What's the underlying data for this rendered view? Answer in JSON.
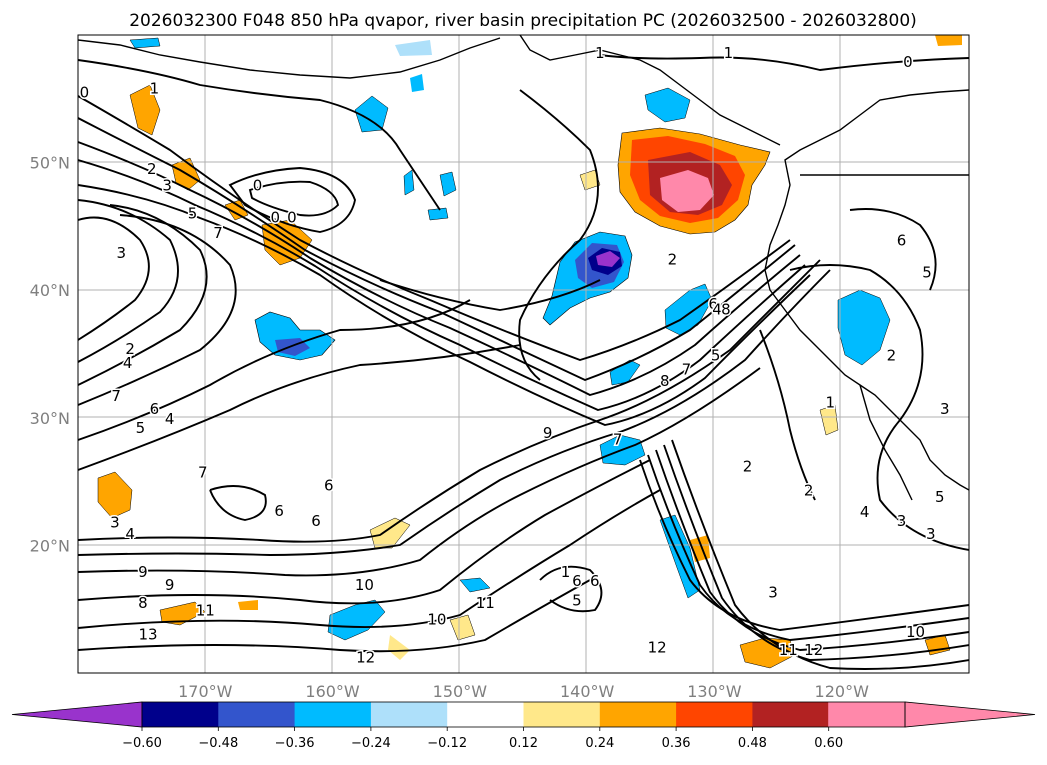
{
  "chart_data": {
    "type": "contour-map",
    "title": "2026032300 F048 850 hPa qvapor, river basin precipitation PC (2026032500 - 2026032800)",
    "projection": "lat-lon",
    "lon_range": [
      -180,
      -110
    ],
    "lat_range": [
      10,
      60
    ],
    "x_ticks": [
      {
        "lon": -170,
        "label": "170°W"
      },
      {
        "lon": -160,
        "label": "160°W"
      },
      {
        "lon": -150,
        "label": "150°W"
      },
      {
        "lon": -140,
        "label": "140°W"
      },
      {
        "lon": -130,
        "label": "130°W"
      },
      {
        "lon": -120,
        "label": "120°W"
      }
    ],
    "y_ticks": [
      {
        "lat": 50,
        "label": "50°N"
      },
      {
        "lat": 40,
        "label": "40°N"
      },
      {
        "lat": 30,
        "label": "30°N"
      },
      {
        "lat": 20,
        "label": "20°N"
      }
    ],
    "colorbar": {
      "levels": [
        -0.6,
        -0.48,
        -0.36,
        -0.24,
        -0.12,
        0.12,
        0.24,
        0.36,
        0.48,
        0.6
      ],
      "level_labels": [
        "−0.60",
        "−0.48",
        "−0.36",
        "−0.24",
        "−0.12",
        "0.12",
        "0.24",
        "0.36",
        "0.48",
        "0.60"
      ],
      "colors": [
        "#9933cc",
        "#00008b",
        "#3355cc",
        "#00bbff",
        "#aee0fa",
        "#ffffff",
        "#ffe88a",
        "#ffa500",
        "#ff4500",
        "#b22222",
        "#ff88aa"
      ],
      "extend": "both"
    },
    "contour_field": "850 hPa qvapor (g/kg)",
    "contour_labels": [
      {
        "lon": -179.5,
        "lat": 55.5,
        "text": "0"
      },
      {
        "lon": -174,
        "lat": 55.8,
        "text": "1"
      },
      {
        "lon": -174.2,
        "lat": 49.5,
        "text": "2"
      },
      {
        "lon": -173,
        "lat": 48.2,
        "text": "3"
      },
      {
        "lon": -171,
        "lat": 46,
        "text": "5"
      },
      {
        "lon": -169,
        "lat": 44.5,
        "text": "7"
      },
      {
        "lon": -165.9,
        "lat": 48.2,
        "text": "0"
      },
      {
        "lon": -164.5,
        "lat": 45.7,
        "text": "0"
      },
      {
        "lon": -163.2,
        "lat": 45.7,
        "text": "0"
      },
      {
        "lon": -176.6,
        "lat": 42.9,
        "text": "3"
      },
      {
        "lon": -175.9,
        "lat": 35.4,
        "text": "2"
      },
      {
        "lon": -176.1,
        "lat": 34.3,
        "text": "4"
      },
      {
        "lon": -177,
        "lat": 31.7,
        "text": "7"
      },
      {
        "lon": -174,
        "lat": 30.7,
        "text": "6"
      },
      {
        "lon": -175.1,
        "lat": 29.2,
        "text": "5"
      },
      {
        "lon": -172.8,
        "lat": 29.9,
        "text": "4"
      },
      {
        "lon": -170.2,
        "lat": 25.7,
        "text": "7"
      },
      {
        "lon": -160.3,
        "lat": 24.7,
        "text": "6"
      },
      {
        "lon": -164.2,
        "lat": 22.7,
        "text": "6"
      },
      {
        "lon": -161.3,
        "lat": 21.9,
        "text": "6"
      },
      {
        "lon": -177.1,
        "lat": 21.8,
        "text": "3"
      },
      {
        "lon": -175.9,
        "lat": 20.9,
        "text": "4"
      },
      {
        "lon": -174.9,
        "lat": 17.9,
        "text": "9"
      },
      {
        "lon": -172.8,
        "lat": 16.9,
        "text": "9"
      },
      {
        "lon": -174.9,
        "lat": 15.5,
        "text": "8"
      },
      {
        "lon": -170,
        "lat": 14.9,
        "text": "11"
      },
      {
        "lon": -174.5,
        "lat": 13,
        "text": "13"
      },
      {
        "lon": -157.5,
        "lat": 16.9,
        "text": "10"
      },
      {
        "lon": -151.8,
        "lat": 14.2,
        "text": "10"
      },
      {
        "lon": -148,
        "lat": 15.5,
        "text": "11"
      },
      {
        "lon": -157.4,
        "lat": 11.2,
        "text": "12"
      },
      {
        "lon": -141.7,
        "lat": 17.9,
        "text": "1"
      },
      {
        "lon": -140.8,
        "lat": 17.2,
        "text": "6"
      },
      {
        "lon": -139.4,
        "lat": 17.2,
        "text": "6"
      },
      {
        "lon": -140.8,
        "lat": 15.7,
        "text": "5"
      },
      {
        "lon": -143.1,
        "lat": 28.8,
        "text": "9"
      },
      {
        "lon": -137.6,
        "lat": 28.3,
        "text": "7"
      },
      {
        "lon": -127.4,
        "lat": 26.2,
        "text": "2"
      },
      {
        "lon": -122.6,
        "lat": 24.3,
        "text": "2"
      },
      {
        "lon": -118.2,
        "lat": 22.6,
        "text": "4"
      },
      {
        "lon": -115.3,
        "lat": 21.9,
        "text": "3"
      },
      {
        "lon": -113,
        "lat": 20.9,
        "text": "3"
      },
      {
        "lon": -112.3,
        "lat": 23.8,
        "text": "5"
      },
      {
        "lon": -125.4,
        "lat": 16.3,
        "text": "3"
      },
      {
        "lon": -124.2,
        "lat": 11.8,
        "text": "11"
      },
      {
        "lon": -122.2,
        "lat": 11.8,
        "text": "12"
      },
      {
        "lon": -114.2,
        "lat": 13.2,
        "text": "10"
      },
      {
        "lon": -134.5,
        "lat": 12,
        "text": "12"
      },
      {
        "lon": -133.3,
        "lat": 42.4,
        "text": "2"
      },
      {
        "lon": -130.1,
        "lat": 38.9,
        "text": "6"
      },
      {
        "lon": -129.8,
        "lat": 38.5,
        "text": "4"
      },
      {
        "lon": -129.1,
        "lat": 38.5,
        "text": "8"
      },
      {
        "lon": -132.2,
        "lat": 33.8,
        "text": "7"
      },
      {
        "lon": -133.9,
        "lat": 32.9,
        "text": "8"
      },
      {
        "lon": -129.9,
        "lat": 34.9,
        "text": "5"
      },
      {
        "lon": -116.1,
        "lat": 34.9,
        "text": "2"
      },
      {
        "lon": -115.3,
        "lat": 43.9,
        "text": "6"
      },
      {
        "lon": -113.3,
        "lat": 41.4,
        "text": "5"
      },
      {
        "lon": -120.9,
        "lat": 31.2,
        "text": "1"
      },
      {
        "lon": -111.9,
        "lat": 30.7,
        "text": "3"
      },
      {
        "lon": -139,
        "lat": 58.6,
        "text": "1"
      },
      {
        "lon": -128.9,
        "lat": 58.6,
        "text": "1"
      },
      {
        "lon": -114.8,
        "lat": 57.9,
        "text": "0"
      }
    ]
  }
}
